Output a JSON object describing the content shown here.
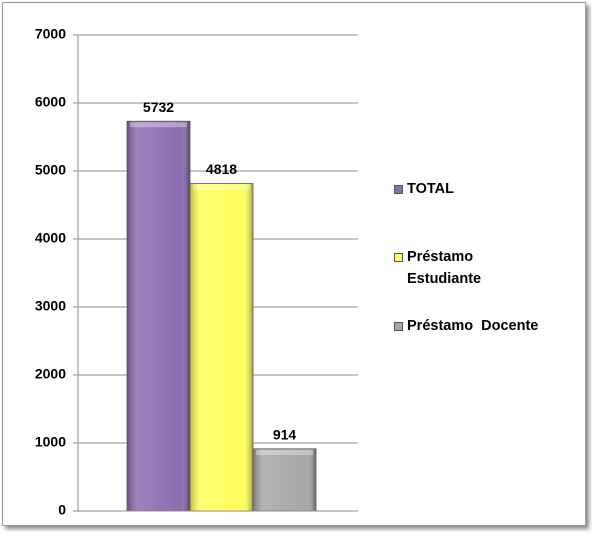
{
  "chart_data": {
    "type": "bar",
    "categories": [
      null
    ],
    "series": [
      {
        "name": "TOTAL",
        "color": "#8a6db0",
        "values": [
          5732
        ]
      },
      {
        "name": "Préstamo Estudiante",
        "color": "#ffff5e",
        "values": [
          4818
        ]
      },
      {
        "name": "Préstamo  Docente",
        "color": "#a6a6a6",
        "values": [
          914
        ]
      }
    ],
    "ylim": [
      0,
      7000
    ],
    "yticks": [
      0,
      1000,
      2000,
      3000,
      4000,
      5000,
      6000,
      7000
    ],
    "grid": true,
    "legend": "right"
  }
}
